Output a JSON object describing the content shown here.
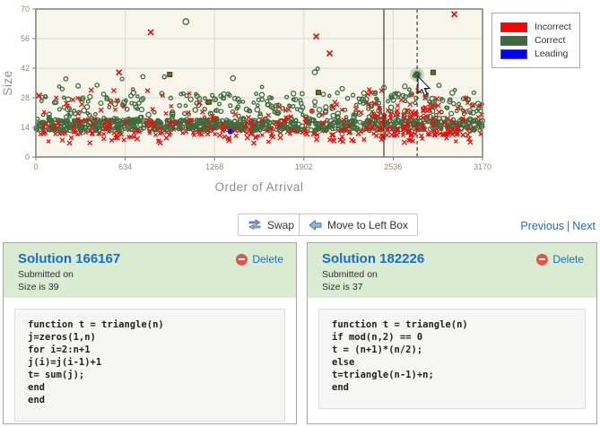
{
  "chart_data": {
    "type": "scatter",
    "title": "",
    "xlabel": "Order of Arrival",
    "ylabel": "Size",
    "xlim": [
      0,
      3170
    ],
    "ylim": [
      0,
      70
    ],
    "xticks": [
      0,
      634,
      1268,
      1902,
      2536,
      3170
    ],
    "yticks": [
      0,
      14,
      28,
      42,
      56,
      70
    ],
    "grid": true,
    "legend_position": "top-right",
    "legend": [
      {
        "label": "Incorrect",
        "color": "#ff0000"
      },
      {
        "label": "Correct",
        "color": "#3d6b3d"
      },
      {
        "label": "Leading",
        "color": "#0000ff"
      }
    ],
    "series_colors": {
      "incorrect": "#e81010",
      "correct": "#3d6b3d",
      "leading": "#1212e0",
      "square": "#6b6b2a"
    },
    "style_colors": {
      "plot_bg": "#f8f5ea",
      "grid": "#d9d9d9",
      "border": "#7f7f7f",
      "tick_label": "#8e8e72",
      "axis_label": "#8f8f8f",
      "vline": "#3c3c3c"
    },
    "gen": {
      "seed": 1337,
      "bands": [
        {
          "series": "incorrect",
          "n": 170,
          "x": [
            0,
            3170
          ],
          "y": {
            "type": "uniform",
            "min": 10,
            "max": 16
          }
        },
        {
          "series": "incorrect",
          "n": 80,
          "x": [
            0,
            3170
          ],
          "y": {
            "type": "uniform",
            "min": 6.5,
            "max": 11.5
          }
        },
        {
          "series": "correct",
          "n": 650,
          "x": [
            0,
            3170
          ],
          "y": {
            "type": "uniform",
            "min": 12.5,
            "max": 17.5
          }
        },
        {
          "series": "correct",
          "n": 300,
          "x": [
            0,
            3170
          ],
          "y": {
            "type": "pow",
            "base": 17,
            "spread": 13,
            "k": 1.8
          }
        },
        {
          "series": "incorrect",
          "n": 110,
          "x": [
            0,
            3170
          ],
          "y": {
            "type": "pow",
            "base": 16,
            "spread": 16,
            "k": 1.8
          }
        },
        {
          "series": "correct",
          "n": 45,
          "x": [
            0,
            3170
          ],
          "y": {
            "type": "pow",
            "base": 27,
            "spread": 15,
            "k": 2.2
          }
        },
        {
          "series": "correct",
          "n": 60,
          "x": [
            2300,
            3170
          ],
          "y": {
            "type": "pow",
            "base": 15,
            "spread": 18,
            "k": 1.8
          }
        },
        {
          "series": "incorrect",
          "n": 70,
          "x": [
            2300,
            3170
          ],
          "y": {
            "type": "pow",
            "base": 10,
            "spread": 22,
            "k": 1.5
          }
        },
        {
          "series": "incorrect",
          "n": 50,
          "x": [
            0,
            3170
          ],
          "y": {
            "type": "uniform",
            "min": 11,
            "max": 15
          }
        }
      ]
    },
    "outliers": {
      "incorrect": [
        [
          815,
          59
        ],
        [
          1990,
          57
        ],
        [
          2085,
          49
        ],
        [
          2970,
          67.5
        ],
        [
          21,
          29
        ],
        [
          590,
          40
        ]
      ],
      "correct": [
        [
          1065,
          64
        ]
      ]
    },
    "squares": [
      [
        950,
        39
      ],
      [
        2005,
        30.5
      ],
      [
        2820,
        40
      ],
      [
        1230,
        26
      ]
    ],
    "leading_point": [
      1380,
      12
    ],
    "vlines": [
      {
        "x": 2470,
        "style": "solid"
      },
      {
        "x": 2706,
        "style": "dashed"
      }
    ],
    "highlight_point": {
      "x": 2706,
      "y": 39
    },
    "cursor": {
      "x": 2712,
      "y": 38.2
    }
  },
  "toolbar": {
    "swap_label": "Swap",
    "move_label": "Move to Left Box",
    "previous_label": "Previous",
    "separator": "|",
    "next_label": "Next"
  },
  "panels": [
    {
      "title": "Solution 166167",
      "submitted": "Submitted on",
      "size": "Size is 39",
      "delete_label": "Delete",
      "code": "function t = triangle(n)\nj=zeros(1,n)\nfor i=2:n+1\nj(i)=j(i-1)+1\nt= sum(j);\nend\nend"
    },
    {
      "title": "Solution 182226",
      "submitted": "Submitted on",
      "size": "Size is 37",
      "delete_label": "Delete",
      "code": "function t = triangle(n)\nif mod(n,2) == 0\nt = (n+1)*(n/2);\nelse\nt=triangle(n-1)+n;\nend"
    }
  ]
}
